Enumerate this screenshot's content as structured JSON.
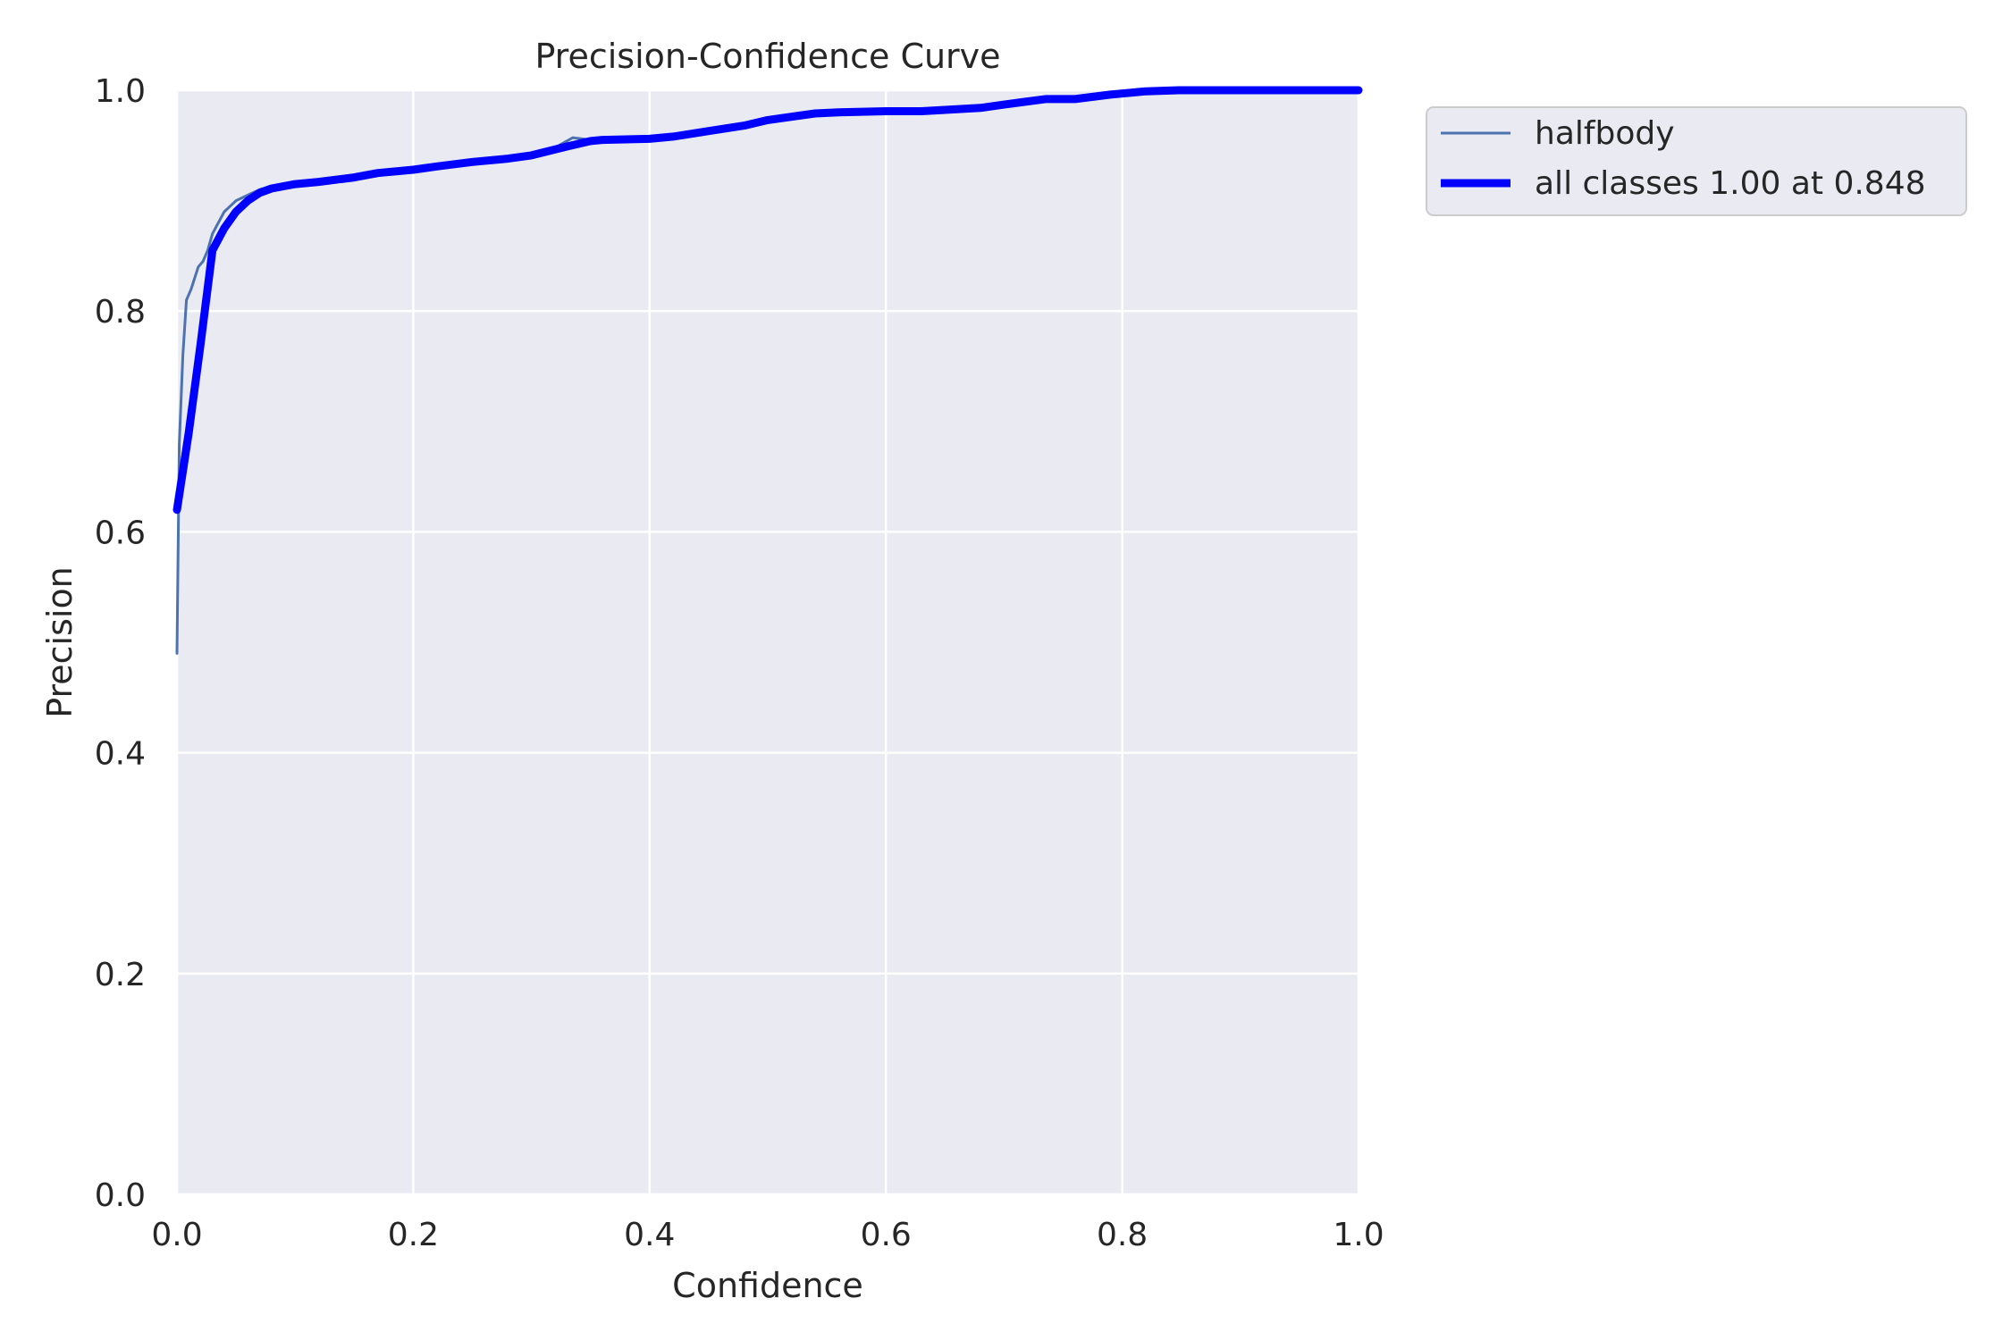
{
  "chart_data": {
    "type": "line",
    "title": "Precision-Confidence Curve",
    "xlabel": "Confidence",
    "ylabel": "Precision",
    "xlim": [
      0,
      1
    ],
    "ylim": [
      0,
      1
    ],
    "xticks": [
      "0.0",
      "0.2",
      "0.4",
      "0.6",
      "0.8",
      "1.0"
    ],
    "yticks": [
      "0.0",
      "0.2",
      "0.4",
      "0.6",
      "0.8",
      "1.0"
    ],
    "grid": true,
    "legend_position": "outside-top-right",
    "background_color": "#eaeaf2",
    "series": [
      {
        "name": "halfbody",
        "color": "#4c72b0",
        "style": "thin",
        "x": [
          0.0,
          0.002,
          0.005,
          0.008,
          0.012,
          0.018,
          0.022,
          0.026,
          0.03,
          0.035,
          0.04,
          0.045,
          0.05,
          0.06,
          0.07,
          0.08,
          0.1,
          0.12,
          0.15,
          0.17,
          0.2,
          0.22,
          0.25,
          0.28,
          0.3,
          0.32,
          0.335,
          0.35,
          0.36,
          0.4,
          0.42,
          0.45,
          0.48,
          0.5,
          0.54,
          0.56,
          0.6,
          0.63,
          0.68,
          0.7,
          0.735,
          0.76,
          0.79,
          0.82,
          0.848,
          0.9,
          1.0
        ],
        "y": [
          0.49,
          0.68,
          0.76,
          0.81,
          0.82,
          0.84,
          0.845,
          0.855,
          0.87,
          0.88,
          0.89,
          0.895,
          0.9,
          0.905,
          0.91,
          0.913,
          0.915,
          0.917,
          0.921,
          0.925,
          0.928,
          0.931,
          0.935,
          0.938,
          0.942,
          0.948,
          0.957,
          0.955,
          0.957,
          0.957,
          0.96,
          0.965,
          0.969,
          0.974,
          0.98,
          0.981,
          0.981,
          0.982,
          0.985,
          0.988,
          0.993,
          0.993,
          0.996,
          0.999,
          1.0,
          1.0,
          1.0
        ]
      },
      {
        "name": "all classes 1.00 at 0.848",
        "color": "#0000ff",
        "style": "thick",
        "x": [
          0.0,
          0.01,
          0.02,
          0.03,
          0.04,
          0.05,
          0.06,
          0.07,
          0.08,
          0.1,
          0.12,
          0.15,
          0.17,
          0.2,
          0.22,
          0.25,
          0.28,
          0.3,
          0.33,
          0.35,
          0.36,
          0.4,
          0.42,
          0.45,
          0.48,
          0.5,
          0.54,
          0.56,
          0.6,
          0.63,
          0.68,
          0.7,
          0.735,
          0.76,
          0.79,
          0.82,
          0.848,
          0.9,
          1.0
        ],
        "y": [
          0.62,
          0.69,
          0.77,
          0.855,
          0.875,
          0.89,
          0.9,
          0.907,
          0.911,
          0.915,
          0.917,
          0.921,
          0.925,
          0.928,
          0.931,
          0.935,
          0.938,
          0.941,
          0.949,
          0.954,
          0.955,
          0.956,
          0.958,
          0.963,
          0.968,
          0.973,
          0.979,
          0.98,
          0.981,
          0.981,
          0.984,
          0.987,
          0.992,
          0.992,
          0.996,
          0.999,
          1.0,
          1.0,
          1.0
        ]
      }
    ]
  }
}
